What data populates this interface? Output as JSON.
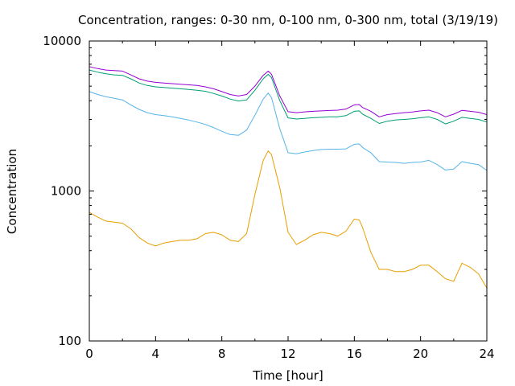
{
  "chart_data": {
    "type": "line",
    "title": "Concentration, ranges: 0-30 nm, 0-100 nm, 0-300 nm, total (3/19/19)",
    "xlabel": "Time [hour]",
    "ylabel": "Concentration",
    "xlim": [
      0,
      24
    ],
    "ylim": [
      100,
      10000
    ],
    "yscale": "log",
    "x_ticks": [
      0,
      4,
      8,
      12,
      16,
      20,
      24
    ],
    "x_tick_labels": [
      "0",
      "4",
      "8",
      "12",
      "16",
      "20",
      "24"
    ],
    "y_ticks": [
      100,
      1000,
      10000
    ],
    "y_tick_labels": [
      "100",
      "1000",
      "10000"
    ],
    "grid": false,
    "legend": "none",
    "x": [
      0,
      0.5,
      1,
      1.5,
      2,
      2.5,
      3,
      3.5,
      4,
      4.5,
      5,
      5.5,
      6,
      6.5,
      7,
      7.5,
      8,
      8.5,
      9,
      9.5,
      10,
      10.5,
      10.8,
      11,
      11.5,
      12,
      12.5,
      13,
      13.5,
      14,
      14.5,
      15,
      15.5,
      16,
      16.3,
      16.5,
      17,
      17.5,
      18,
      18.5,
      19,
      19.5,
      20,
      20.5,
      21,
      21.5,
      22,
      22.5,
      23,
      23.5,
      24
    ],
    "series": [
      {
        "color": "#e69f00",
        "values": [
          720,
          670,
          630,
          620,
          610,
          560,
          490,
          450,
          430,
          450,
          460,
          470,
          470,
          480,
          520,
          530,
          510,
          470,
          460,
          520,
          950,
          1600,
          1850,
          1750,
          1050,
          530,
          440,
          470,
          510,
          530,
          520,
          500,
          540,
          650,
          640,
          570,
          390,
          300,
          300,
          290,
          290,
          300,
          320,
          320,
          290,
          260,
          250,
          330,
          310,
          280,
          225
        ]
      },
      {
        "color": "#56b4e9",
        "values": [
          4600,
          4400,
          4250,
          4150,
          4050,
          3750,
          3500,
          3330,
          3230,
          3180,
          3120,
          3050,
          2970,
          2880,
          2780,
          2650,
          2500,
          2380,
          2350,
          2550,
          3200,
          4100,
          4500,
          4200,
          2600,
          1800,
          1770,
          1820,
          1860,
          1890,
          1900,
          1900,
          1910,
          2050,
          2060,
          1950,
          1800,
          1570,
          1560,
          1550,
          1530,
          1550,
          1560,
          1600,
          1500,
          1380,
          1400,
          1570,
          1530,
          1500,
          1370
        ]
      },
      {
        "color": "#009e73",
        "values": [
          6400,
          6200,
          6050,
          5950,
          5900,
          5600,
          5250,
          5050,
          4950,
          4900,
          4850,
          4800,
          4750,
          4700,
          4620,
          4470,
          4300,
          4100,
          3980,
          4050,
          4700,
          5600,
          6000,
          5700,
          4000,
          3070,
          3020,
          3050,
          3080,
          3100,
          3120,
          3120,
          3180,
          3400,
          3420,
          3250,
          3050,
          2820,
          2920,
          2980,
          3000,
          3030,
          3080,
          3120,
          3000,
          2800,
          2920,
          3100,
          3050,
          3000,
          2880
        ]
      },
      {
        "color": "#9400d3",
        "values": [
          6750,
          6550,
          6400,
          6350,
          6300,
          5950,
          5600,
          5400,
          5300,
          5250,
          5200,
          5150,
          5100,
          5050,
          4950,
          4800,
          4600,
          4400,
          4300,
          4400,
          5000,
          5900,
          6300,
          6000,
          4300,
          3380,
          3330,
          3370,
          3400,
          3420,
          3440,
          3460,
          3520,
          3750,
          3770,
          3600,
          3400,
          3120,
          3230,
          3280,
          3330,
          3360,
          3420,
          3460,
          3330,
          3120,
          3250,
          3450,
          3400,
          3350,
          3230
        ]
      }
    ]
  }
}
